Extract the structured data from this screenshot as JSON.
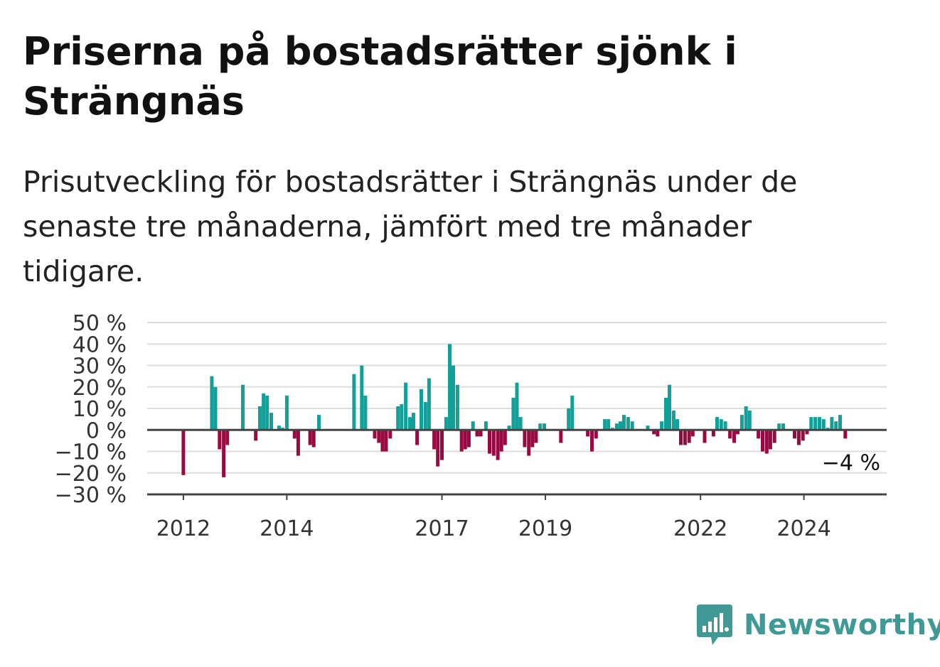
{
  "title": "Priserna på bostadsrätter sjönk i Strängnäs",
  "subtitle": "Prisutveckling för bostadsrätter i Strängnäs under de senaste tre månaderna, jämfört med tre månader tidigare.",
  "brand": {
    "name": "Newsworthy",
    "icon": "newsworthy-logo-icon",
    "color": "#3f9a96"
  },
  "colors": {
    "positive": "#12a098",
    "negative": "#9a0a42",
    "grid": "#dddddd",
    "axis": "#444444"
  },
  "chart_data": {
    "type": "bar",
    "title": "Priserna på bostadsrätter sjönk i Strängnäs",
    "ylabel": "",
    "xlabel": "",
    "ylim": [
      -30,
      50
    ],
    "xlim": [
      2011.3,
      2025.6
    ],
    "y_ticks": [
      "50 %",
      "40 %",
      "30 %",
      "20 %",
      "10 %",
      "0 %",
      "−10 %",
      "−20 %",
      "−30 %"
    ],
    "y_tick_values": [
      50,
      40,
      30,
      20,
      10,
      0,
      -10,
      -20,
      -30
    ],
    "x_ticks": [
      "2012",
      "2014",
      "2017",
      "2019",
      "2022",
      "2024"
    ],
    "x_tick_values": [
      2012,
      2014,
      2017,
      2019,
      2022,
      2024
    ],
    "grid": true,
    "last_value_label": "−4 %",
    "bars": [
      {
        "x": 2012.0,
        "value": -21
      },
      {
        "x": 2012.55,
        "value": 25
      },
      {
        "x": 2012.62,
        "value": 20
      },
      {
        "x": 2012.7,
        "value": -9
      },
      {
        "x": 2012.78,
        "value": -22
      },
      {
        "x": 2012.85,
        "value": -7
      },
      {
        "x": 2013.15,
        "value": 21
      },
      {
        "x": 2013.4,
        "value": -5
      },
      {
        "x": 2013.48,
        "value": 11
      },
      {
        "x": 2013.55,
        "value": 17
      },
      {
        "x": 2013.62,
        "value": 16
      },
      {
        "x": 2013.7,
        "value": 8
      },
      {
        "x": 2013.85,
        "value": 2
      },
      {
        "x": 2013.92,
        "value": 1
      },
      {
        "x": 2014.0,
        "value": 16
      },
      {
        "x": 2014.15,
        "value": -4
      },
      {
        "x": 2014.22,
        "value": -12
      },
      {
        "x": 2014.45,
        "value": -7
      },
      {
        "x": 2014.52,
        "value": -8
      },
      {
        "x": 2014.62,
        "value": 7
      },
      {
        "x": 2015.3,
        "value": 26
      },
      {
        "x": 2015.45,
        "value": 30
      },
      {
        "x": 2015.52,
        "value": 16
      },
      {
        "x": 2015.7,
        "value": -4
      },
      {
        "x": 2015.78,
        "value": -6
      },
      {
        "x": 2015.85,
        "value": -10
      },
      {
        "x": 2015.92,
        "value": -10
      },
      {
        "x": 2016.0,
        "value": -4
      },
      {
        "x": 2016.15,
        "value": 11
      },
      {
        "x": 2016.22,
        "value": 12
      },
      {
        "x": 2016.3,
        "value": 22
      },
      {
        "x": 2016.38,
        "value": 6
      },
      {
        "x": 2016.45,
        "value": 8
      },
      {
        "x": 2016.52,
        "value": -7
      },
      {
        "x": 2016.6,
        "value": 19
      },
      {
        "x": 2016.68,
        "value": 13
      },
      {
        "x": 2016.75,
        "value": 24
      },
      {
        "x": 2016.85,
        "value": -9
      },
      {
        "x": 2016.92,
        "value": -17
      },
      {
        "x": 2017.0,
        "value": -14
      },
      {
        "x": 2017.08,
        "value": 6
      },
      {
        "x": 2017.15,
        "value": 40
      },
      {
        "x": 2017.22,
        "value": 30
      },
      {
        "x": 2017.3,
        "value": 21
      },
      {
        "x": 2017.38,
        "value": -10
      },
      {
        "x": 2017.45,
        "value": -9
      },
      {
        "x": 2017.52,
        "value": -8
      },
      {
        "x": 2017.6,
        "value": 4
      },
      {
        "x": 2017.68,
        "value": -3
      },
      {
        "x": 2017.75,
        "value": -3
      },
      {
        "x": 2017.85,
        "value": 4
      },
      {
        "x": 2017.92,
        "value": -11
      },
      {
        "x": 2018.0,
        "value": -12
      },
      {
        "x": 2018.08,
        "value": -14
      },
      {
        "x": 2018.15,
        "value": -10
      },
      {
        "x": 2018.22,
        "value": -7
      },
      {
        "x": 2018.3,
        "value": 2
      },
      {
        "x": 2018.38,
        "value": 15
      },
      {
        "x": 2018.45,
        "value": 22
      },
      {
        "x": 2018.52,
        "value": 6
      },
      {
        "x": 2018.6,
        "value": -8
      },
      {
        "x": 2018.68,
        "value": -12
      },
      {
        "x": 2018.75,
        "value": -8
      },
      {
        "x": 2018.82,
        "value": -6
      },
      {
        "x": 2018.9,
        "value": 3
      },
      {
        "x": 2018.98,
        "value": 3
      },
      {
        "x": 2019.3,
        "value": -6
      },
      {
        "x": 2019.45,
        "value": 10
      },
      {
        "x": 2019.52,
        "value": 16
      },
      {
        "x": 2019.82,
        "value": -3
      },
      {
        "x": 2019.9,
        "value": -10
      },
      {
        "x": 2019.98,
        "value": -4
      },
      {
        "x": 2020.15,
        "value": 5
      },
      {
        "x": 2020.22,
        "value": 5
      },
      {
        "x": 2020.3,
        "value": 1
      },
      {
        "x": 2020.38,
        "value": 3
      },
      {
        "x": 2020.45,
        "value": 4
      },
      {
        "x": 2020.52,
        "value": 7
      },
      {
        "x": 2020.6,
        "value": 6
      },
      {
        "x": 2020.68,
        "value": 4
      },
      {
        "x": 2020.98,
        "value": 2
      },
      {
        "x": 2021.1,
        "value": -2
      },
      {
        "x": 2021.17,
        "value": -3
      },
      {
        "x": 2021.25,
        "value": 4
      },
      {
        "x": 2021.33,
        "value": 15
      },
      {
        "x": 2021.4,
        "value": 21
      },
      {
        "x": 2021.48,
        "value": 9
      },
      {
        "x": 2021.55,
        "value": 5
      },
      {
        "x": 2021.62,
        "value": -7
      },
      {
        "x": 2021.7,
        "value": -7
      },
      {
        "x": 2021.78,
        "value": -6
      },
      {
        "x": 2021.85,
        "value": -3
      },
      {
        "x": 2022.08,
        "value": -6
      },
      {
        "x": 2022.25,
        "value": -3
      },
      {
        "x": 2022.32,
        "value": 6
      },
      {
        "x": 2022.4,
        "value": 5
      },
      {
        "x": 2022.48,
        "value": 4
      },
      {
        "x": 2022.57,
        "value": -4
      },
      {
        "x": 2022.65,
        "value": -6
      },
      {
        "x": 2022.72,
        "value": -2
      },
      {
        "x": 2022.8,
        "value": 7
      },
      {
        "x": 2022.88,
        "value": 11
      },
      {
        "x": 2022.95,
        "value": 9
      },
      {
        "x": 2023.12,
        "value": -4
      },
      {
        "x": 2023.2,
        "value": -10
      },
      {
        "x": 2023.28,
        "value": -11
      },
      {
        "x": 2023.35,
        "value": -9
      },
      {
        "x": 2023.43,
        "value": -6
      },
      {
        "x": 2023.52,
        "value": 3
      },
      {
        "x": 2023.6,
        "value": 3
      },
      {
        "x": 2023.82,
        "value": -4
      },
      {
        "x": 2023.9,
        "value": -7
      },
      {
        "x": 2023.98,
        "value": -5
      },
      {
        "x": 2024.06,
        "value": -2
      },
      {
        "x": 2024.14,
        "value": 6
      },
      {
        "x": 2024.22,
        "value": 6
      },
      {
        "x": 2024.3,
        "value": 6
      },
      {
        "x": 2024.38,
        "value": 5
      },
      {
        "x": 2024.46,
        "value": 1
      },
      {
        "x": 2024.54,
        "value": 6
      },
      {
        "x": 2024.62,
        "value": 4
      },
      {
        "x": 2024.7,
        "value": 7
      },
      {
        "x": 2024.8,
        "value": -4
      }
    ]
  }
}
